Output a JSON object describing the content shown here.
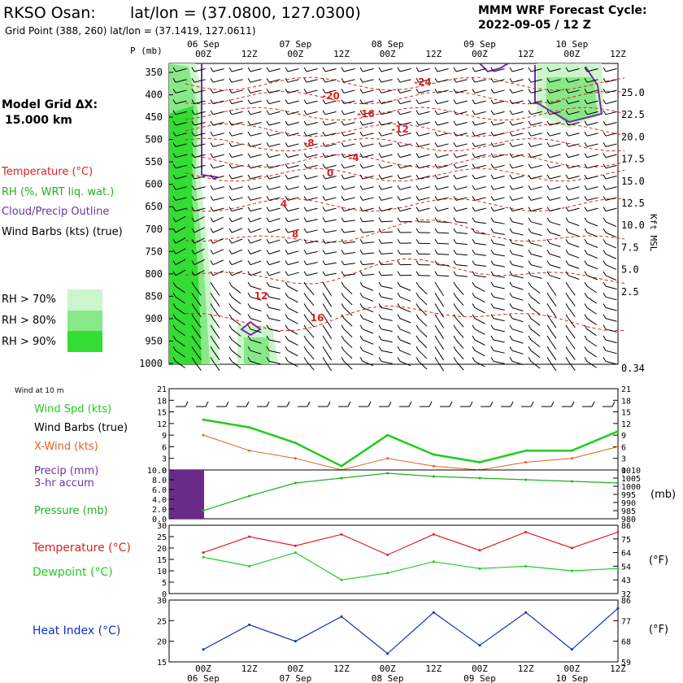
{
  "header": {
    "station": "RKSO Osan:",
    "latlon": "lat/lon = (37.0800, 127.0300)",
    "grid_point": "Grid Point (388, 260) lat/lon = (37.1419, 127.0611)",
    "forecast_title": "MMM WRF Forecast Cycle:",
    "forecast_cycle": "2022-09-05 / 12  Z"
  },
  "model": {
    "label": "Model Grid ΔX:",
    "value": "15.000 km"
  },
  "colors": {
    "temp": "#e02020",
    "rh70": "#ccf5cc",
    "rh80": "#88e888",
    "rh90": "#33dd33",
    "cloud": "#7030a0",
    "wind": "#20cc20",
    "xwind": "#e06020",
    "pressure": "#20b020",
    "dewpoint": "#20cc20",
    "heat": "#1030c0",
    "precip": "#6a2a8a"
  },
  "legend": {
    "temperature": "Temperature (°C)",
    "rh": "RH (%, WRT liq. wat.)",
    "cloud": "Cloud/Precip Outline",
    "barbs": "Wind Barbs (kts) (true)",
    "rh70": "RH > 70%",
    "rh80": "RH > 80%",
    "rh90": "RH > 90%"
  },
  "time_axis": {
    "dates": [
      "06 Sep",
      "07 Sep",
      "08 Sep",
      "09 Sep",
      "10 Sep"
    ],
    "hours": [
      "00Z",
      "12Z",
      "00Z",
      "12Z",
      "00Z",
      "12Z",
      "00Z",
      "12Z",
      "00Z",
      "12Z"
    ]
  },
  "panels": {
    "sounding": {
      "p_label": "P (mb)",
      "pressure_ticks": [
        "350",
        "400",
        "450",
        "500",
        "550",
        "600",
        "650",
        "700",
        "750",
        "800",
        "850",
        "900",
        "950",
        "1000"
      ],
      "height_ticks": [
        "25.0",
        "22.5",
        "20.0",
        "17.5",
        "15.0",
        "12.5",
        "10.0",
        "7.5",
        "5.0",
        "2.5",
        "0.34"
      ],
      "height_unit": "Kft MSL",
      "temp_labels": [
        "-24",
        "-20",
        "-16",
        "-12",
        "-8",
        "-4",
        "0",
        "4",
        "8",
        "12",
        "16"
      ]
    },
    "wind": {
      "title": "Wind at 10 m",
      "labels": [
        "Wind Spd (kts)",
        "Wind Barbs (true)",
        "X-Wind (kts)"
      ],
      "ticks": [
        "21",
        "18",
        "15",
        "12",
        "9",
        "6",
        "3",
        "0"
      ]
    },
    "precip": {
      "labels": [
        "Precip (mm)",
        "3-hr accum",
        "Pressure (mb)"
      ],
      "left_ticks": [
        "10.0",
        "8.0",
        "6.0",
        "4.0",
        "2.0",
        "0.0"
      ],
      "right_ticks": [
        "1010",
        "1005",
        "1000",
        "995",
        "990",
        "985",
        "980"
      ],
      "unit": "(mb)"
    },
    "temp": {
      "labels": [
        "Temperature (°C)",
        "Dewpoint (°C)"
      ],
      "left_ticks": [
        "30",
        "25",
        "20",
        "15",
        "10",
        "5",
        "0"
      ],
      "right_ticks": [
        "86",
        "75",
        "64",
        "54",
        "43",
        "32"
      ],
      "unit": "(°F)"
    },
    "heat": {
      "label": "Heat Index (°C)",
      "left_ticks": [
        "30",
        "25",
        "20",
        "15"
      ],
      "right_ticks": [
        "86",
        "77",
        "68",
        "59"
      ],
      "unit": "(°F)"
    }
  },
  "chart_data": [
    {
      "type": "line",
      "name": "wind at 10 m",
      "x": [
        "06 Sep 00Z",
        "06 Sep 12Z",
        "07 Sep 00Z",
        "07 Sep 12Z",
        "08 Sep 00Z",
        "08 Sep 12Z",
        "09 Sep 00Z",
        "09 Sep 12Z",
        "10 Sep 00Z",
        "10 Sep 12Z"
      ],
      "series": [
        {
          "name": "Wind Spd (kts)",
          "values": [
            13,
            11,
            7,
            1,
            9,
            4,
            2,
            5,
            5,
            10
          ]
        },
        {
          "name": "X-Wind (kts)",
          "values": [
            9,
            5,
            3,
            0,
            3,
            1,
            0,
            2,
            3,
            6
          ]
        }
      ],
      "ylim": [
        0,
        21
      ]
    },
    {
      "type": "line",
      "name": "pressure",
      "x": [
        "06 Sep 00Z",
        "06 Sep 12Z",
        "07 Sep 00Z",
        "07 Sep 12Z",
        "08 Sep 00Z",
        "08 Sep 12Z",
        "09 Sep 00Z",
        "09 Sep 12Z",
        "10 Sep 00Z",
        "10 Sep 12Z"
      ],
      "series": [
        {
          "name": "Pressure (mb)",
          "values": [
            985,
            994,
            1002,
            1005,
            1008,
            1006,
            1005,
            1004,
            1003,
            1002
          ]
        }
      ],
      "ylim": [
        980,
        1010
      ]
    },
    {
      "type": "line",
      "name": "temperature",
      "x": [
        "06 Sep 00Z",
        "06 Sep 12Z",
        "07 Sep 00Z",
        "07 Sep 12Z",
        "08 Sep 00Z",
        "08 Sep 12Z",
        "09 Sep 00Z",
        "09 Sep 12Z",
        "10 Sep 00Z",
        "10 Sep 12Z"
      ],
      "series": [
        {
          "name": "Temperature (°C)",
          "values": [
            18,
            25,
            21,
            26,
            17,
            26,
            19,
            27,
            20,
            27
          ]
        },
        {
          "name": "Dewpoint (°C)",
          "values": [
            16,
            12,
            18,
            6,
            9,
            14,
            11,
            12,
            10,
            11
          ]
        }
      ],
      "ylim": [
        0,
        30
      ]
    },
    {
      "type": "line",
      "name": "heat index",
      "x": [
        "06 Sep 00Z",
        "06 Sep 12Z",
        "07 Sep 00Z",
        "07 Sep 12Z",
        "08 Sep 00Z",
        "08 Sep 12Z",
        "09 Sep 00Z",
        "09 Sep 12Z",
        "10 Sep 00Z",
        "10 Sep 12Z"
      ],
      "series": [
        {
          "name": "Heat Index (°C)",
          "values": [
            18,
            24,
            20,
            26,
            17,
            27,
            19,
            27,
            18,
            28
          ]
        }
      ],
      "ylim": [
        15,
        30
      ]
    }
  ]
}
